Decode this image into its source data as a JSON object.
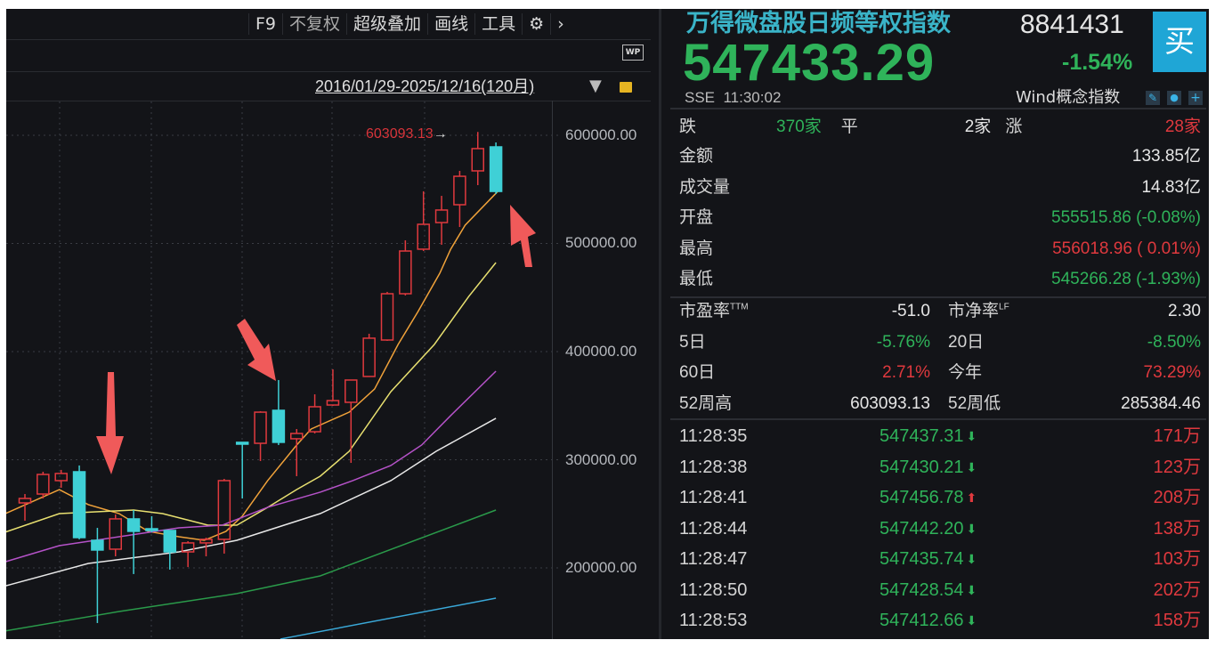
{
  "toolbar": {
    "items": [
      "F9",
      "不复权",
      "超级叠加",
      "画线",
      "工具"
    ],
    "gear_icon": "gear-icon",
    "more_icon": "chevron-right-icon",
    "wp_label": "WP"
  },
  "date_range": "2016/01/29-2025/12/16(120月)",
  "quote": {
    "name": "万得微盘股日频等权指数",
    "code": "8841431",
    "price": "547433.29",
    "change_pct": "-1.54%",
    "exchange": "SSE",
    "time": "11:30:02",
    "buy_label": "买",
    "concept_label": "Wind概念指数"
  },
  "breadth": {
    "down_label": "跌",
    "down": "370家",
    "flat_label": "平",
    "flat": "2家",
    "up_label": "涨",
    "up": "28家"
  },
  "stats": [
    {
      "label": "金额",
      "value": "133.85亿",
      "color": "w"
    },
    {
      "label": "成交量",
      "value": "14.83亿",
      "color": "w"
    },
    {
      "label": "开盘",
      "value": "555515.86 (-0.08%)",
      "color": "g"
    },
    {
      "label": "最高",
      "value": "556018.96 ( 0.01%)",
      "color": "r"
    },
    {
      "label": "最低",
      "value": "545266.28 (-1.93%)",
      "color": "g"
    }
  ],
  "metrics": [
    {
      "l1": "市盈率",
      "s1": "TTM",
      "v1": "-51.0",
      "c1": "w",
      "l2": "市净率",
      "s2": "LF",
      "v2": "2.30",
      "c2": "w"
    },
    {
      "l1": "5日",
      "s1": "",
      "v1": "-5.76%",
      "c1": "g",
      "l2": "20日",
      "s2": "",
      "v2": "-8.50%",
      "c2": "g"
    },
    {
      "l1": "60日",
      "s1": "",
      "v1": "2.71%",
      "c1": "r",
      "l2": "今年",
      "s2": "",
      "v2": "73.29%",
      "c2": "r"
    },
    {
      "l1": "52周高",
      "s1": "",
      "v1": "603093.13",
      "c1": "w",
      "l2": "52周低",
      "s2": "",
      "v2": "285384.46",
      "c2": "w"
    }
  ],
  "ticks": [
    {
      "time": "11:28:35",
      "price": "547437.31",
      "dir": "down",
      "vol": "171万"
    },
    {
      "time": "11:28:38",
      "price": "547430.21",
      "dir": "down",
      "vol": "123万"
    },
    {
      "time": "11:28:41",
      "price": "547456.78",
      "dir": "up",
      "vol": "208万"
    },
    {
      "time": "11:28:44",
      "price": "547442.20",
      "dir": "down",
      "vol": "138万"
    },
    {
      "time": "11:28:47",
      "price": "547435.74",
      "dir": "down",
      "vol": "103万"
    },
    {
      "time": "11:28:50",
      "price": "547428.54",
      "dir": "down",
      "vol": "202万"
    },
    {
      "time": "11:28:53",
      "price": "547412.66",
      "dir": "down",
      "vol": "158万"
    }
  ],
  "colors": {
    "up": "#e0393e",
    "down": "#3fd0d6",
    "green": "#2fb35a",
    "buy_bg": "#1fa6d6",
    "title": "#3ab4c8"
  },
  "chart_data": {
    "type": "candlestick",
    "period": "monthly",
    "ylim": [
      130000,
      640000
    ],
    "yticks": [
      "600000.00",
      "500000.00",
      "400000.00",
      "300000.00",
      "200000.00"
    ],
    "ytick_values": [
      600000,
      500000,
      400000,
      300000,
      200000
    ],
    "max_annotation": "603093.13",
    "ohlc": [
      [
        260100,
        268300,
        243600,
        264200
      ],
      [
        268300,
        288900,
        264200,
        286400
      ],
      [
        280700,
        290600,
        274100,
        287300
      ],
      [
        288900,
        294700,
        226400,
        228000
      ],
      [
        225500,
        237000,
        149000,
        216500
      ],
      [
        217300,
        249400,
        210700,
        245300
      ],
      [
        245300,
        253500,
        194300,
        233800
      ],
      [
        236200,
        247800,
        232900,
        234600
      ],
      [
        234600,
        234600,
        198400,
        214800
      ],
      [
        214800,
        224700,
        200800,
        223100
      ],
      [
        223100,
        228000,
        210700,
        226400
      ],
      [
        226400,
        282300,
        213200,
        280700
      ],
      [
        316100,
        316100,
        264200,
        314400
      ],
      [
        315200,
        344900,
        298800,
        344000
      ],
      [
        345700,
        373700,
        313600,
        316100
      ],
      [
        319400,
        328400,
        284800,
        324300
      ],
      [
        325900,
        360500,
        324300,
        349000
      ],
      [
        350600,
        383600,
        349800,
        354700
      ],
      [
        353100,
        373700,
        297100,
        373700
      ],
      [
        377000,
        416500,
        377000,
        412400
      ],
      [
        410700,
        455200,
        409900,
        453500
      ],
      [
        453500,
        502900,
        451900,
        493000
      ],
      [
        494700,
        548200,
        493000,
        517700
      ],
      [
        519300,
        544000,
        498800,
        530900
      ],
      [
        535800,
        567100,
        515200,
        562100
      ],
      [
        567100,
        603093,
        553900,
        587700
      ],
      [
        589300,
        593400,
        545700,
        548100
      ]
    ],
    "moving_averages": [
      {
        "color": "#f0a23a",
        "points": [
          [
            -1.4,
            247800
          ],
          [
            1.9,
            272400
          ],
          [
            3.5,
            258500
          ],
          [
            5.2,
            250200
          ],
          [
            6.8,
            233800
          ],
          [
            8.5,
            228800
          ],
          [
            9.9,
            225500
          ],
          [
            11.1,
            233800
          ],
          [
            12.0,
            247800
          ],
          [
            13.4,
            280700
          ],
          [
            15.0,
            313600
          ],
          [
            15.8,
            328400
          ],
          [
            17.9,
            344000
          ],
          [
            19.3,
            365400
          ],
          [
            20.6,
            406600
          ],
          [
            21.7,
            437000
          ],
          [
            22.9,
            472400
          ],
          [
            23.5,
            494600
          ],
          [
            24.3,
            516900
          ],
          [
            26.1,
            548100
          ]
        ]
      },
      {
        "color": "#e8e070",
        "points": [
          [
            -1.4,
            231300
          ],
          [
            1.9,
            250200
          ],
          [
            6.0,
            253500
          ],
          [
            7.6,
            250200
          ],
          [
            10.1,
            239500
          ],
          [
            11.7,
            239500
          ],
          [
            13.4,
            256000
          ],
          [
            15.0,
            272400
          ],
          [
            16.3,
            284800
          ],
          [
            17.9,
            307800
          ],
          [
            20.2,
            363000
          ],
          [
            22.6,
            406600
          ],
          [
            24.5,
            451000
          ],
          [
            26.0,
            482300
          ]
        ]
      },
      {
        "color": "#b552c8",
        "points": [
          [
            -1.4,
            204100
          ],
          [
            1.9,
            220600
          ],
          [
            5.2,
            228800
          ],
          [
            8.5,
            237000
          ],
          [
            10.9,
            239500
          ],
          [
            13.4,
            256000
          ],
          [
            16.3,
            270000
          ],
          [
            18.1,
            280700
          ],
          [
            20.2,
            294700
          ],
          [
            21.9,
            313600
          ],
          [
            23.5,
            340800
          ],
          [
            26.0,
            381900
          ]
        ]
      },
      {
        "color": "#e8e8e8",
        "points": [
          [
            -1.4,
            181900
          ],
          [
            3.5,
            204100
          ],
          [
            8.5,
            214800
          ],
          [
            11.7,
            225500
          ],
          [
            16.3,
            250200
          ],
          [
            20.2,
            280700
          ],
          [
            22.7,
            307800
          ],
          [
            26.0,
            338300
          ]
        ]
      },
      {
        "color": "#2a9a4a",
        "points": [
          [
            -1.4,
            140800
          ],
          [
            5.2,
            159700
          ],
          [
            11.7,
            176200
          ],
          [
            16.3,
            192600
          ],
          [
            26.0,
            253500
          ]
        ]
      },
      {
        "color": "#3aa8d8",
        "points": [
          [
            14.1,
            134200
          ],
          [
            26.0,
            172000
          ]
        ]
      }
    ]
  }
}
